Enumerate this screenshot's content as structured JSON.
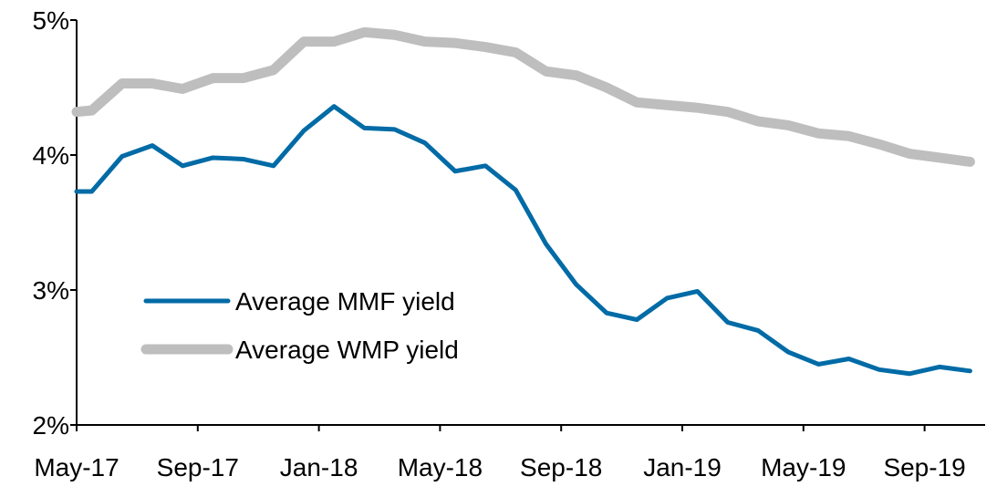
{
  "chart_data": {
    "type": "line",
    "title": "",
    "xlabel": "",
    "ylabel": "",
    "ylim": [
      2,
      5
    ],
    "yticks": [
      "2%",
      "3%",
      "4%",
      "5%"
    ],
    "xtick_labels": [
      "May-17",
      "Sep-17",
      "Jan-18",
      "May-18",
      "Sep-18",
      "Jan-19",
      "May-19",
      "Sep-19"
    ],
    "x": [
      "2017-05",
      "2017-06",
      "2017-07",
      "2017-08",
      "2017-09",
      "2017-10",
      "2017-11",
      "2017-12",
      "2018-01",
      "2018-02",
      "2018-03",
      "2018-04",
      "2018-05",
      "2018-06",
      "2018-07",
      "2018-08",
      "2018-09",
      "2018-10",
      "2018-11",
      "2018-12",
      "2019-01",
      "2019-02",
      "2019-03",
      "2019-04",
      "2019-05",
      "2019-06",
      "2019-07",
      "2019-08",
      "2019-09",
      "2019-10"
    ],
    "grid": false,
    "legend_placement": "bottom-left",
    "series": [
      {
        "name": "Average MMF yield",
        "color": "#006BA6",
        "values": [
          3.73,
          3.99,
          4.07,
          3.92,
          3.98,
          3.97,
          3.92,
          4.18,
          4.36,
          4.2,
          4.19,
          4.09,
          3.88,
          3.92,
          3.74,
          3.34,
          3.04,
          2.83,
          2.78,
          2.94,
          2.99,
          2.76,
          2.7,
          2.54,
          2.45,
          2.49,
          2.41,
          2.38,
          2.43,
          2.4
        ]
      },
      {
        "name": "Average WMP yield",
        "color": "#BEBEBE",
        "values": [
          4.33,
          4.53,
          4.53,
          4.49,
          4.57,
          4.57,
          4.63,
          4.84,
          4.84,
          4.91,
          4.89,
          4.84,
          4.83,
          4.8,
          4.76,
          4.62,
          4.59,
          4.5,
          4.39,
          4.37,
          4.35,
          4.32,
          4.25,
          4.22,
          4.16,
          4.14,
          4.08,
          4.01,
          3.98,
          3.95
        ]
      }
    ]
  }
}
